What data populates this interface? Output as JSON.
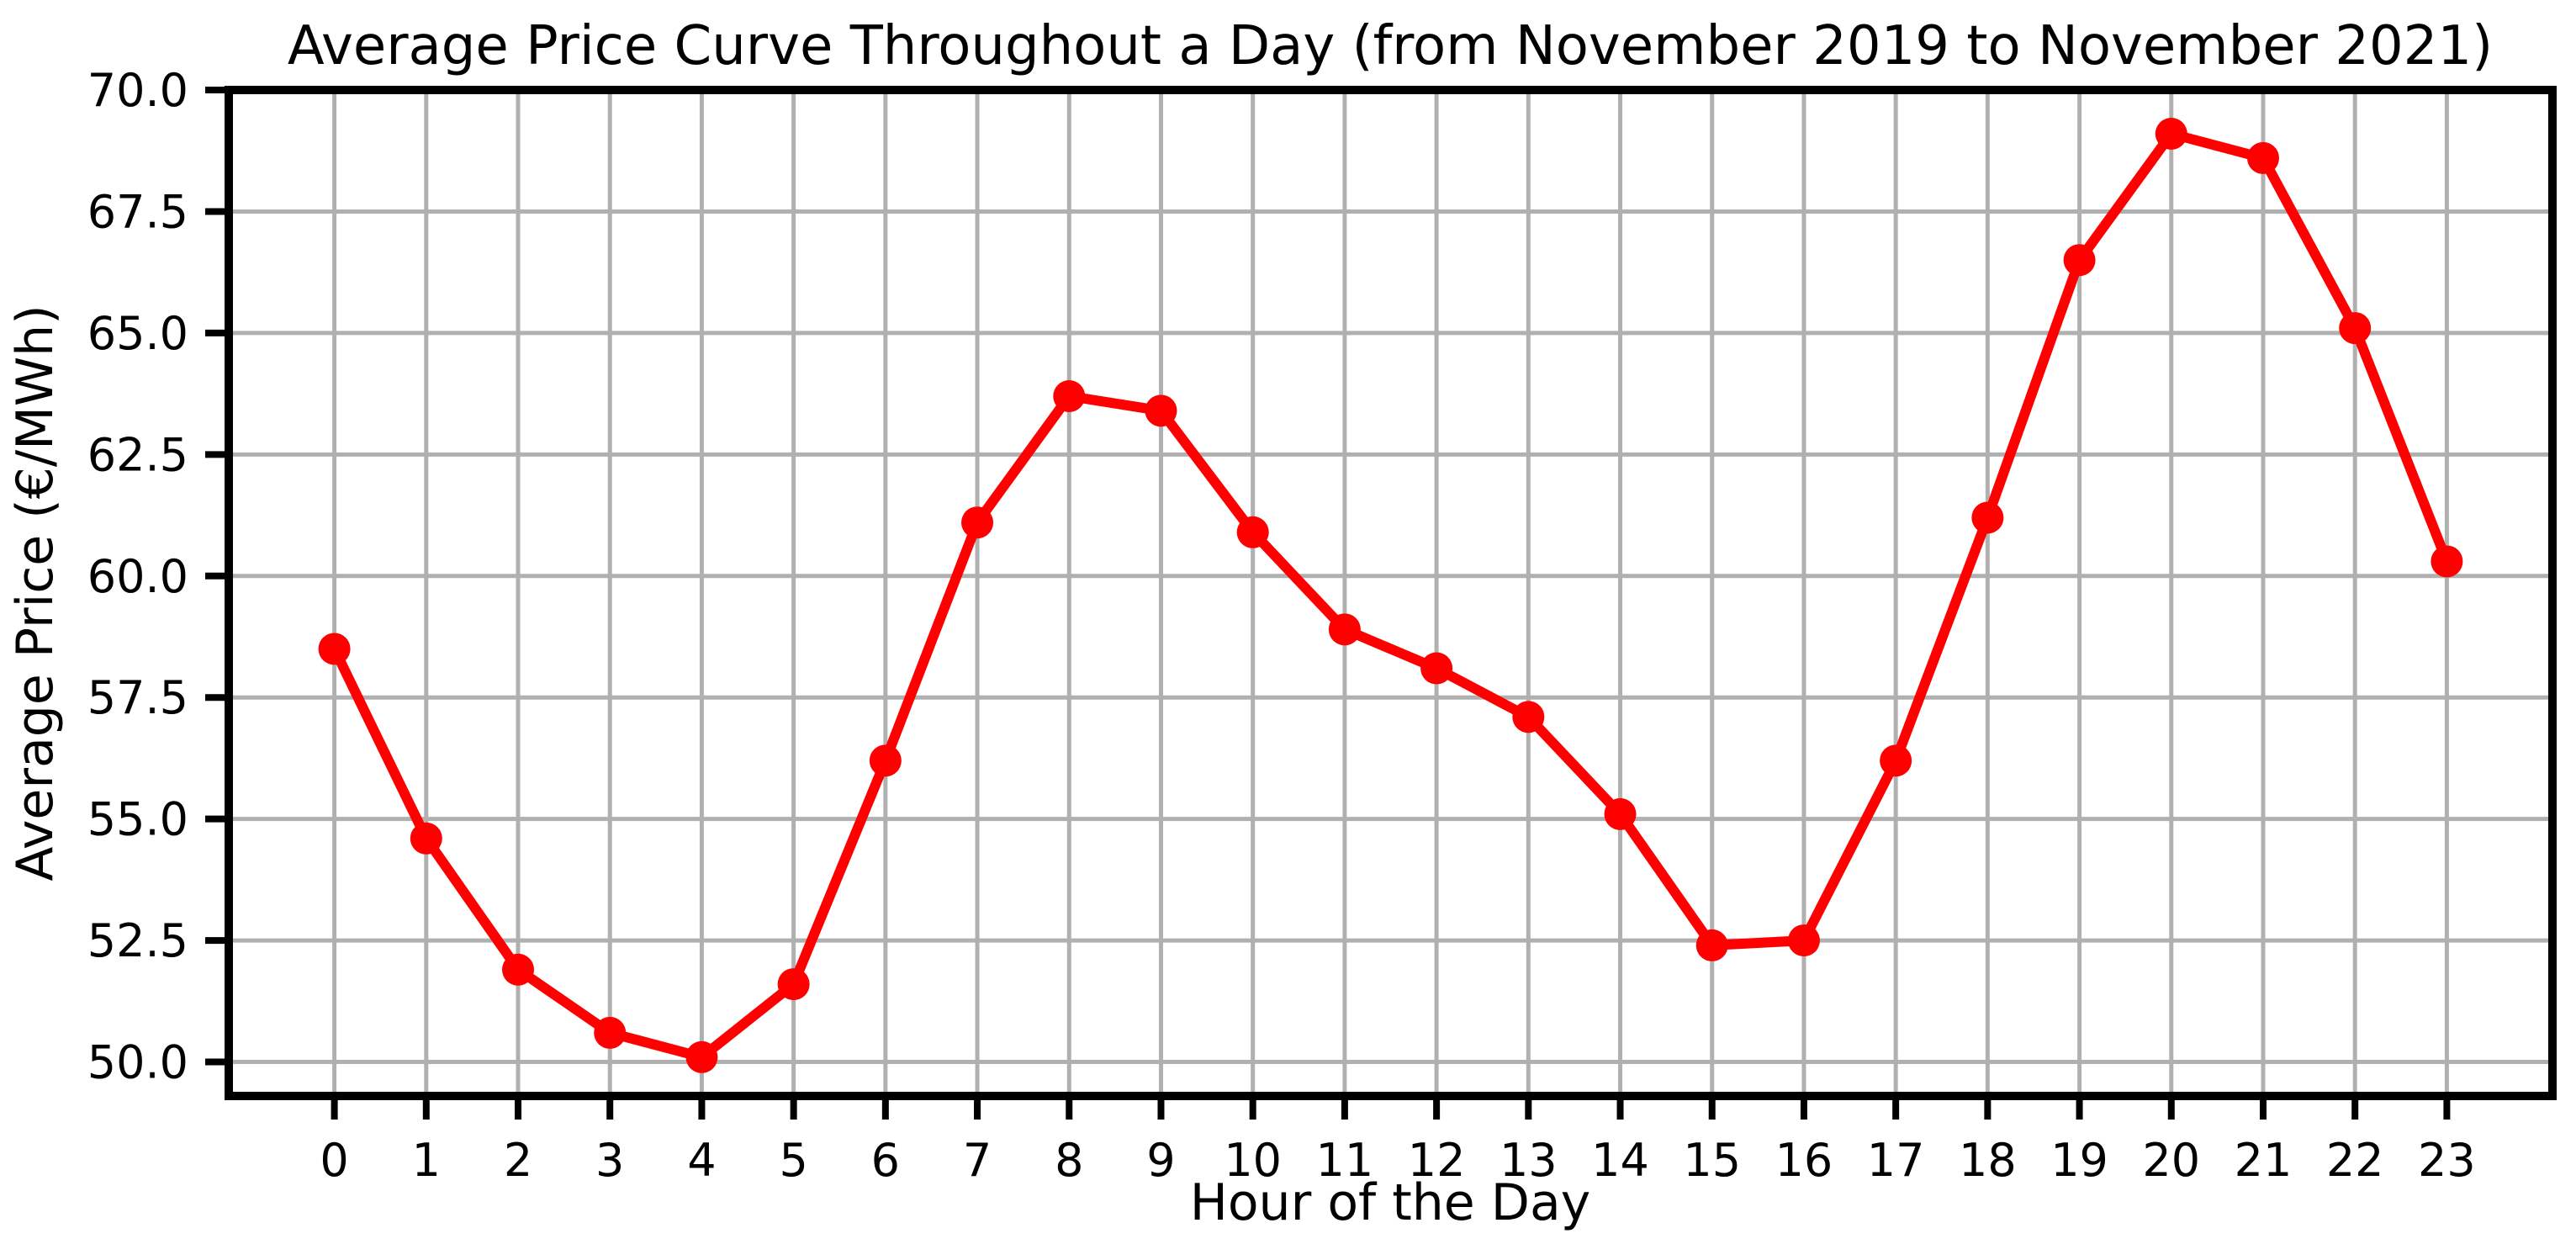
{
  "page": {
    "background": "#ffffff"
  },
  "chart_data": {
    "type": "line",
    "title": "Average Price Curve Throughout a Day (from November 2019 to November 2021)",
    "xlabel": "Hour of the Day",
    "ylabel": "Average Price (€/MWh)",
    "x": [
      0,
      1,
      2,
      3,
      4,
      5,
      6,
      7,
      8,
      9,
      10,
      11,
      12,
      13,
      14,
      15,
      16,
      17,
      18,
      19,
      20,
      21,
      22,
      23
    ],
    "series": [
      {
        "name": "Average Price",
        "values": [
          58.5,
          54.6,
          51.9,
          50.6,
          50.1,
          51.6,
          56.2,
          61.1,
          63.7,
          63.4,
          60.9,
          58.9,
          58.1,
          57.1,
          55.1,
          52.4,
          52.5,
          56.2,
          61.2,
          66.5,
          69.1,
          68.6,
          65.1,
          60.3
        ]
      }
    ],
    "xticks": [
      0,
      1,
      2,
      3,
      4,
      5,
      6,
      7,
      8,
      9,
      10,
      11,
      12,
      13,
      14,
      15,
      16,
      17,
      18,
      19,
      20,
      21,
      22,
      23
    ],
    "yticks": [
      50.0,
      52.5,
      55.0,
      57.5,
      60.0,
      62.5,
      65.0,
      67.5,
      70.0
    ],
    "ytick_labels": [
      "50.0",
      "52.5",
      "55.0",
      "57.5",
      "60.0",
      "62.5",
      "65.0",
      "67.5",
      "70.0"
    ],
    "xlim": [
      -1.15,
      24.15
    ],
    "ylim": [
      49.3,
      70.0
    ],
    "grid": true,
    "legend": false,
    "line_color": "#ff0000",
    "marker": "o",
    "grid_color": "#b0b0b0",
    "spine_color": "#000000",
    "text_color": "#000000"
  }
}
